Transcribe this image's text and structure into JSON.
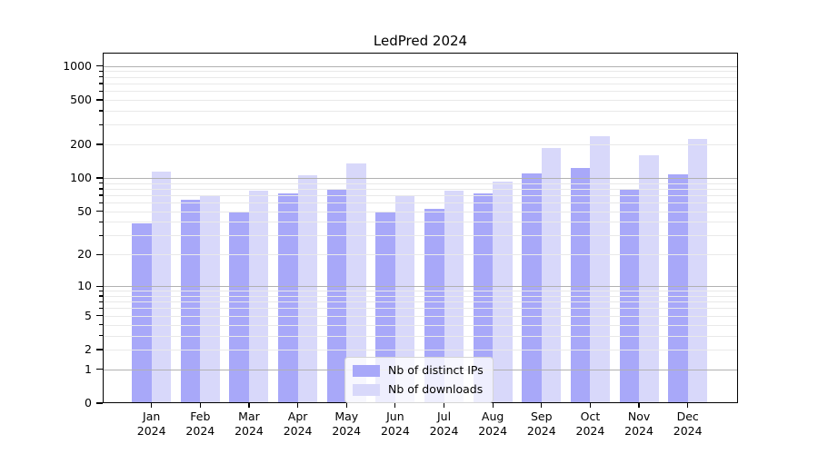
{
  "title": "LedPred 2024",
  "chart_data": {
    "type": "bar",
    "title": "LedPred 2024",
    "categories": [
      "Jan 2024",
      "Feb 2024",
      "Mar 2024",
      "Apr 2024",
      "May 2024",
      "Jun 2024",
      "Jul 2024",
      "Aug 2024",
      "Sep 2024",
      "Oct 2024",
      "Nov 2024",
      "Dec 2024"
    ],
    "series": [
      {
        "name": "Nb of distinct IPs",
        "color": "#a8a8f9",
        "values": [
          39,
          64,
          49,
          73,
          78,
          49,
          53,
          72,
          110,
          124,
          79,
          108
        ]
      },
      {
        "name": "Nb of downloads",
        "color": "#d8d8fa",
        "values": [
          114,
          70,
          77,
          105,
          136,
          69,
          77,
          92,
          186,
          238,
          161,
          222
        ]
      }
    ],
    "yscale": "log1p",
    "ylim": [
      0,
      1316
    ],
    "yticks": [
      0,
      1,
      2,
      5,
      10,
      20,
      50,
      100,
      200,
      500,
      1000
    ],
    "xlabel": "",
    "ylabel": "",
    "grid": true,
    "legend_position": "lower center"
  },
  "colors": {
    "bar_distinct_ips": "#a8a8f9",
    "bar_downloads": "#d8d8fa",
    "grid_major": "#b1b1b1",
    "grid_minor": "#e9e9e9",
    "axis_frame": "#000000",
    "legend_border": "#d5d5d5"
  }
}
